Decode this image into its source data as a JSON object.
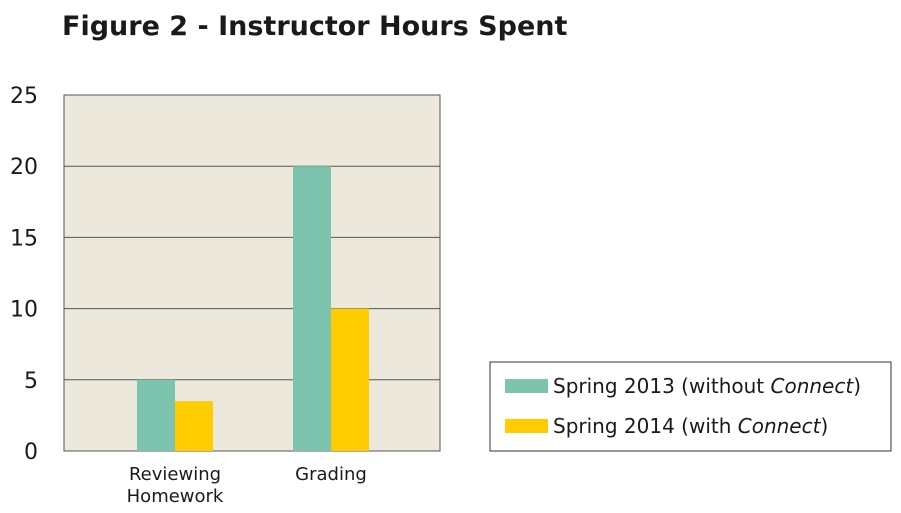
{
  "chart_data": {
    "type": "bar",
    "title": "Figure 2 - Instructor Hours Spent",
    "categories": [
      [
        "Reviewing",
        "Homework"
      ],
      [
        "Grading"
      ]
    ],
    "series": [
      {
        "name": "Spring 2013 (without Connect)",
        "legend_prefix": "Spring 2013 (without ",
        "legend_italic": "Connect",
        "legend_suffix": ")",
        "color": "#7cc4ad",
        "values": [
          5,
          20
        ]
      },
      {
        "name": "Spring 2014 (with Connect)",
        "legend_prefix": "Spring 2014 (with ",
        "legend_italic": "Connect",
        "legend_suffix": ")",
        "color": "#ffcc00",
        "values": [
          3.5,
          10
        ]
      }
    ],
    "ylim": [
      0,
      25
    ],
    "yticks": [
      0,
      5,
      10,
      15,
      20,
      25
    ],
    "grid": true,
    "plot_background": "#ece9dc",
    "legend_position": "right"
  }
}
